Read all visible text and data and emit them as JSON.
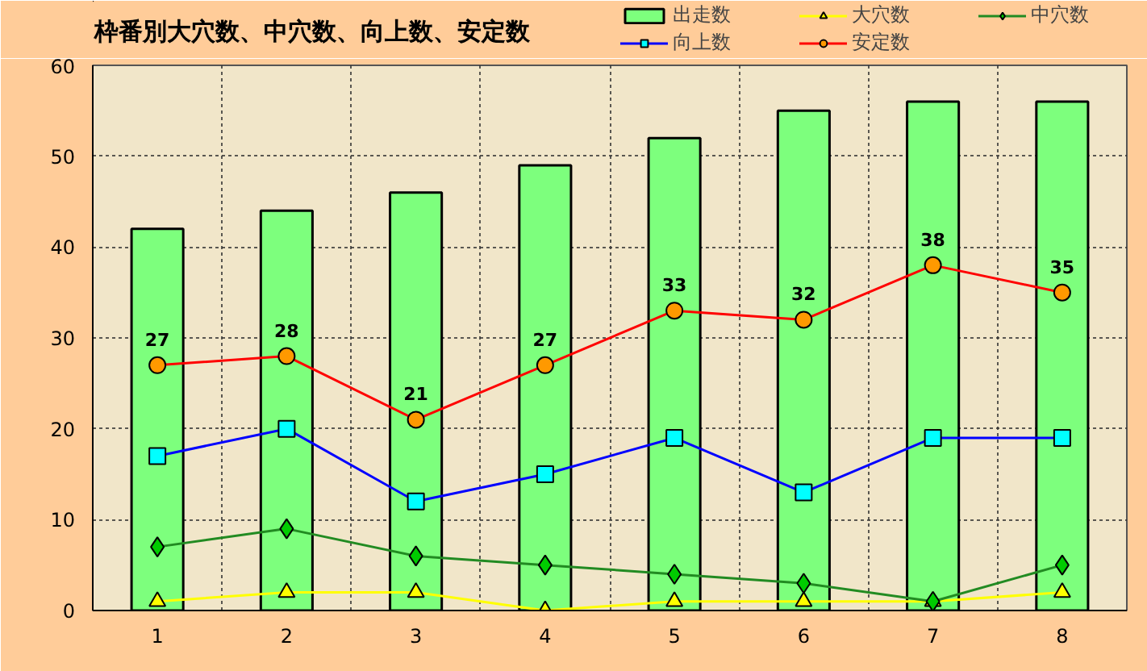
{
  "chart_data": {
    "type": "bar",
    "title": "枠番別大穴数、中穴数、向上数、安定数",
    "categories": [
      "1",
      "2",
      "3",
      "4",
      "5",
      "6",
      "7",
      "8"
    ],
    "ylim": [
      0,
      60
    ],
    "yticks": [
      0,
      10,
      20,
      30,
      40,
      50,
      60
    ],
    "grid": true,
    "legend": "top right",
    "series": [
      {
        "name": "出走数",
        "color": "#7dff7d",
        "values": [
          42,
          44,
          46,
          49,
          52,
          55,
          56,
          56
        ]
      },
      {
        "name": "大穴数",
        "type": "line",
        "color": "#ffff00",
        "marker": "triangle",
        "values": [
          1,
          2,
          2,
          0,
          1,
          1,
          1,
          2
        ]
      },
      {
        "name": "中穴数",
        "type": "line",
        "color": "#228b22",
        "colors": [
          "#00cc00",
          "#00cc00",
          "#00cc00",
          "#00cc00",
          "#00cc00",
          "#00cc00",
          "#00cc00",
          "#00cc00"
        ],
        "marker": "diamond",
        "values": [
          7,
          9,
          6,
          5,
          4,
          3,
          1,
          5
        ]
      },
      {
        "name": "向上数",
        "type": "line",
        "color": "#0000ff",
        "colors": [
          "#00ffff",
          "#00ffff",
          "#00ffff",
          "#00ffff",
          "#00ffff",
          "#00ffff",
          "#00ffff",
          "#00ffff"
        ],
        "marker": "square",
        "values": [
          17,
          20,
          12,
          15,
          19,
          13,
          19,
          19
        ]
      },
      {
        "name": "安定数",
        "type": "line",
        "color": "#ff0000",
        "colors": [
          "#ff9900",
          "#ff9900",
          "#ff9900",
          "#ff9900",
          "#ff9900",
          "#ff9900",
          "#ff9900",
          "#ff9900"
        ],
        "marker": "circle",
        "values": [
          27,
          28,
          21,
          27,
          33,
          32,
          38,
          35
        ],
        "value_labels": [
          "27",
          "28",
          "21",
          "27",
          "33",
          "32",
          "38",
          "35"
        ]
      }
    ]
  }
}
